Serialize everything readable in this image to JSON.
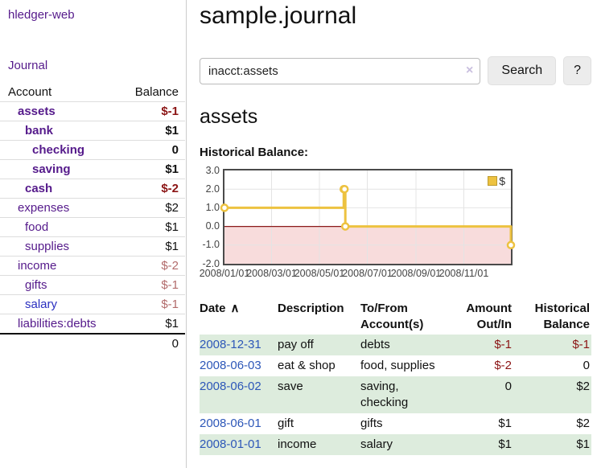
{
  "app": {
    "brand": "hledger-web",
    "nav_journal": "Journal"
  },
  "colors": {
    "link_purple": "#551a8b",
    "link_blue": "#2a2fc0",
    "date_link_blue": "#2d57b8",
    "negative_strong": "#8b1414",
    "negative_soft": "#b26b6b",
    "row_stripe_green": "#ddecdd",
    "series_yellow": "#edc240",
    "negative_region_pink": "#f8dcdc"
  },
  "sidebar": {
    "header": {
      "account": "Account",
      "balance": "Balance"
    },
    "accounts": [
      {
        "name": "assets",
        "balance": "$-1",
        "level": 0,
        "bold": true,
        "balance_style": "neg-strong",
        "link_style": "visited"
      },
      {
        "name": "bank",
        "balance": "$1",
        "level": 1,
        "bold": true,
        "balance_style": "plain",
        "link_style": "visited"
      },
      {
        "name": "checking",
        "balance": "0",
        "level": 2,
        "bold": true,
        "balance_style": "plain",
        "link_style": "visited"
      },
      {
        "name": "saving",
        "balance": "$1",
        "level": 2,
        "bold": true,
        "balance_style": "plain",
        "link_style": "visited"
      },
      {
        "name": "cash",
        "balance": "$-2",
        "level": 1,
        "bold": true,
        "balance_style": "neg-strong",
        "link_style": "visited"
      },
      {
        "name": "expenses",
        "balance": "$2",
        "level": 0,
        "bold": false,
        "balance_style": "plain",
        "link_style": "visited"
      },
      {
        "name": "food",
        "balance": "$1",
        "level": 1,
        "bold": false,
        "balance_style": "plain",
        "link_style": "visited"
      },
      {
        "name": "supplies",
        "balance": "$1",
        "level": 1,
        "bold": false,
        "balance_style": "plain",
        "link_style": "visited"
      },
      {
        "name": "income",
        "balance": "$-2",
        "level": 0,
        "bold": false,
        "balance_style": "neg-soft",
        "link_style": "visited"
      },
      {
        "name": "gifts",
        "balance": "$-1",
        "level": 1,
        "bold": false,
        "balance_style": "neg-soft",
        "link_style": "visited"
      },
      {
        "name": "salary",
        "balance": "$-1",
        "level": 1,
        "bold": false,
        "balance_style": "neg-soft",
        "link_style": "unvisited"
      },
      {
        "name": "liabilities:debts",
        "balance": "$1",
        "level": 0,
        "bold": false,
        "balance_style": "plain",
        "link_style": "visited"
      }
    ],
    "total": "0"
  },
  "main": {
    "title": "sample.journal",
    "search": {
      "value": "inacct:assets",
      "clear_icon": "×",
      "button": "Search",
      "help": "?"
    },
    "account_title": "assets",
    "chart_label": "Historical Balance:"
  },
  "chart_data": {
    "type": "line",
    "step": true,
    "title": "Historical Balance:",
    "x_range": [
      "2008-01-01",
      "2008-12-31"
    ],
    "ylim": [
      -2,
      3
    ],
    "y_ticks": [
      3.0,
      2.0,
      1.0,
      0.0,
      -1.0,
      -2.0
    ],
    "x_ticks": [
      "2008/01/01",
      "2008/03/01",
      "2008/05/01",
      "2008/07/01",
      "2008/09/01",
      "2008/11/01"
    ],
    "series": [
      {
        "name": "$",
        "color": "#edc240",
        "points": [
          [
            "2008-01-01",
            1
          ],
          [
            "2008-06-01",
            2
          ],
          [
            "2008-06-02",
            2
          ],
          [
            "2008-06-03",
            0
          ],
          [
            "2008-12-31",
            -1
          ]
        ]
      }
    ],
    "negative_region_fill": "#f8dcdc",
    "zero_line_color": "#8b1a1a",
    "grid": true,
    "legend": {
      "label": "$",
      "position": "top-right"
    }
  },
  "register": {
    "headers": {
      "date": "Date",
      "sort_icon": "∧",
      "description": "Description",
      "accounts": "To/From Account(s)",
      "amount": "Amount Out/In",
      "balance": "Historical Balance"
    },
    "rows": [
      {
        "date": "2008-12-31",
        "description": "pay off",
        "accounts": "debts",
        "amount": "$-1",
        "amount_neg": true,
        "balance": "$-1",
        "balance_neg": true
      },
      {
        "date": "2008-06-03",
        "description": "eat & shop",
        "accounts": "food, supplies",
        "amount": "$-2",
        "amount_neg": true,
        "balance": "0",
        "balance_neg": false
      },
      {
        "date": "2008-06-02",
        "description": "save",
        "accounts": "saving,\nchecking",
        "amount": "0",
        "amount_neg": false,
        "balance": "$2",
        "balance_neg": false
      },
      {
        "date": "2008-06-01",
        "description": "gift",
        "accounts": "gifts",
        "amount": "$1",
        "amount_neg": false,
        "balance": "$2",
        "balance_neg": false
      },
      {
        "date": "2008-01-01",
        "description": "income",
        "accounts": "salary",
        "amount": "$1",
        "amount_neg": false,
        "balance": "$1",
        "balance_neg": false
      }
    ]
  }
}
